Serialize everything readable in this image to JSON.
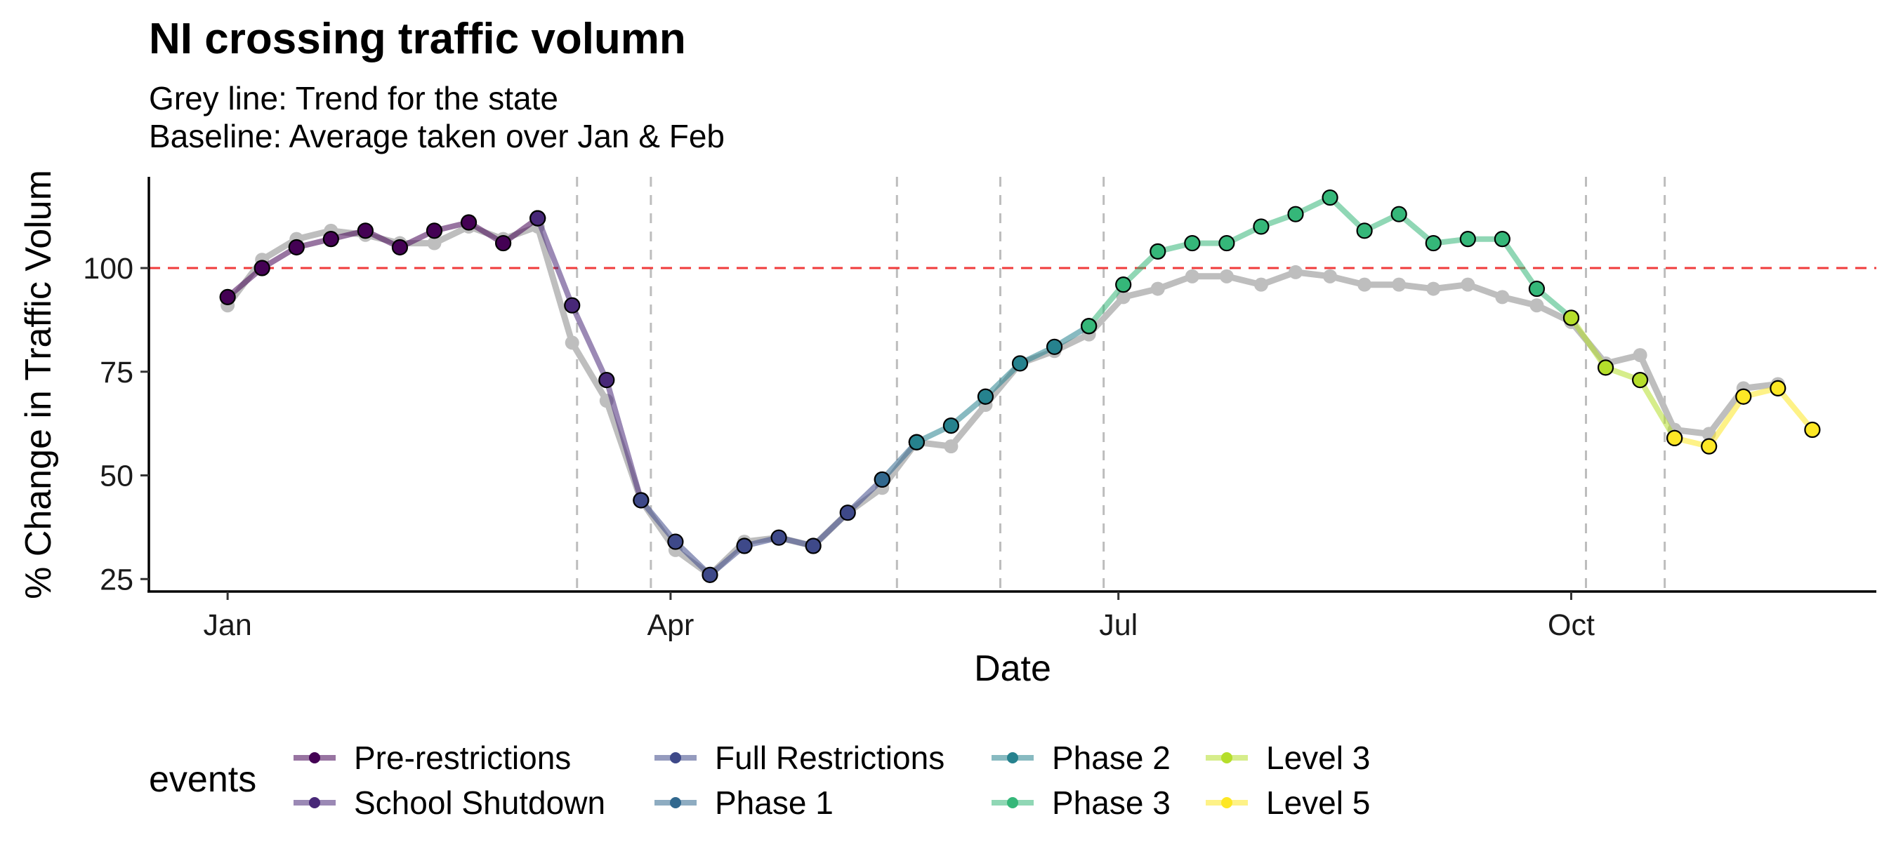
{
  "chart_data": {
    "type": "line",
    "title": "NI crossing traffic volumn",
    "subtitle_lines": [
      "Grey line: Trend for the state",
      "Baseline: Average taken over Jan & Feb"
    ],
    "xlabel": "Date",
    "ylabel": "% Change in Traffic Volum",
    "x_ticks": [
      {
        "label": "Jan",
        "day": 0
      },
      {
        "label": "Apr",
        "day": 90
      },
      {
        "label": "Jul",
        "day": 181
      },
      {
        "label": "Oct",
        "day": 273
      }
    ],
    "y_ticks": [
      25,
      50,
      75,
      100
    ],
    "xlim": [
      -16,
      335
    ],
    "ylim": [
      22,
      122
    ],
    "baseline": {
      "value": 100,
      "color": "#f03b3b"
    },
    "event_dividers": [
      71,
      86,
      136,
      157,
      178,
      276,
      292
    ],
    "grid": false,
    "legend": {
      "title": "events",
      "position": "bottom"
    },
    "series": [
      {
        "name": "Pre-restrictions",
        "color": "#440154",
        "x": [
          0,
          7,
          14,
          21,
          28,
          35,
          42,
          49,
          56,
          63
        ],
        "y": [
          93,
          100,
          105,
          107,
          109,
          105,
          109,
          111,
          106,
          112
        ]
      },
      {
        "name": "School Shutdown",
        "color": "#482878",
        "x": [
          63,
          70,
          77,
          84
        ],
        "y": [
          112,
          91,
          73,
          44
        ]
      },
      {
        "name": "Full Restrictions",
        "color": "#3e4989",
        "x": [
          84,
          91,
          98,
          105,
          112,
          119,
          126,
          133
        ],
        "y": [
          44,
          34,
          26,
          33,
          35,
          33,
          41,
          49
        ]
      },
      {
        "name": "Phase 1",
        "color": "#31688e",
        "x": [
          133,
          140
        ],
        "y": [
          49,
          58
        ]
      },
      {
        "name": "Phase 2",
        "color": "#26828e",
        "x": [
          140,
          147,
          154,
          161,
          168,
          175
        ],
        "y": [
          58,
          62,
          69,
          77,
          81,
          86
        ]
      },
      {
        "name": "Phase 3",
        "color": "#35b779",
        "x": [
          175,
          182,
          189,
          196,
          203,
          210,
          217,
          224,
          231,
          238,
          245,
          252,
          259,
          266,
          273
        ],
        "y": [
          86,
          96,
          104,
          106,
          106,
          110,
          113,
          117,
          109,
          113,
          106,
          107,
          107,
          95,
          88
        ]
      },
      {
        "name": "Level 3",
        "color": "#b5de2b",
        "x": [
          273,
          280,
          287,
          294
        ],
        "y": [
          88,
          76,
          73,
          59
        ]
      },
      {
        "name": "Level 5",
        "color": "#fde725",
        "x": [
          294,
          301,
          308,
          315,
          322
        ],
        "y": [
          59,
          57,
          69,
          71,
          61
        ]
      }
    ],
    "state_trend": {
      "color": "#bebebe",
      "x": [
        0,
        7,
        14,
        21,
        28,
        35,
        42,
        49,
        56,
        63,
        70,
        77,
        84,
        91,
        98,
        105,
        112,
        119,
        126,
        133,
        140,
        147,
        154,
        161,
        168,
        175,
        182,
        189,
        196,
        203,
        210,
        217,
        224,
        231,
        238,
        245,
        252,
        259,
        266,
        273,
        280,
        287,
        294,
        301,
        308,
        315
      ],
      "y": [
        91,
        102,
        107,
        109,
        108,
        106,
        106,
        110,
        107,
        110,
        82,
        68,
        44,
        32,
        26,
        34,
        35,
        33,
        41,
        47,
        58,
        57,
        67,
        77,
        80,
        84,
        93,
        95,
        98,
        98,
        96,
        99,
        98,
        96,
        96,
        95,
        96,
        93,
        91,
        87,
        77,
        79,
        61,
        60,
        71,
        72
      ]
    }
  }
}
